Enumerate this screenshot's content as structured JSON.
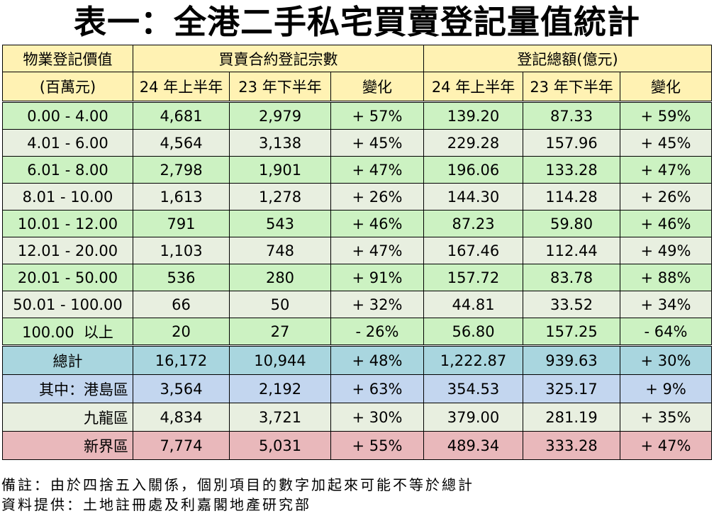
{
  "title": "表一：全港二手私宅買賣登記量值統計",
  "header": {
    "col_label_top": "物業登記價值",
    "col_label_bottom": "(百萬元)",
    "group_count": "買賣合約登記宗數",
    "group_value": "登記總額(億元)",
    "h1_2024": "24 年上半年",
    "h2_2023": "23 年下半年",
    "change": "變化"
  },
  "rows": [
    {
      "range": "0.00 - 4.00",
      "c24": "4,681",
      "c23": "2,979",
      "cchg": "+ 57%",
      "v24": "139.20",
      "v23": "87.33",
      "vchg": "+ 59%"
    },
    {
      "range": "4.01 - 6.00",
      "c24": "4,564",
      "c23": "3,138",
      "cchg": "+ 45%",
      "v24": "229.28",
      "v23": "157.96",
      "vchg": "+ 45%"
    },
    {
      "range": "6.01 - 8.00",
      "c24": "2,798",
      "c23": "1,901",
      "cchg": "+ 47%",
      "v24": "196.06",
      "v23": "133.28",
      "vchg": "+ 47%"
    },
    {
      "range": "8.01 - 10.00",
      "c24": "1,613",
      "c23": "1,278",
      "cchg": "+ 26%",
      "v24": "144.30",
      "v23": "114.28",
      "vchg": "+ 26%"
    },
    {
      "range": "10.01 - 12.00",
      "c24": "791",
      "c23": "543",
      "cchg": "+ 46%",
      "v24": "87.23",
      "v23": "59.80",
      "vchg": "+ 46%"
    },
    {
      "range": "12.01 - 20.00",
      "c24": "1,103",
      "c23": "748",
      "cchg": "+ 47%",
      "v24": "167.46",
      "v23": "112.44",
      "vchg": "+ 49%"
    },
    {
      "range": "20.01 - 50.00",
      "c24": "536",
      "c23": "280",
      "cchg": "+ 91%",
      "v24": "157.72",
      "v23": "83.78",
      "vchg": "+ 88%"
    },
    {
      "range": "50.01 - 100.00",
      "c24": "66",
      "c23": "50",
      "cchg": "+ 32%",
      "v24": "44.81",
      "v23": "33.52",
      "vchg": "+ 34%"
    },
    {
      "range": "100.00  以上",
      "c24": "20",
      "c23": "27",
      "cchg": "- 26%",
      "v24": "56.80",
      "v23": "157.25",
      "vchg": "- 64%"
    }
  ],
  "total": {
    "label": "總計",
    "c24": "16,172",
    "c23": "10,944",
    "cchg": "+ 48%",
    "v24": "1,222.87",
    "v23": "939.63",
    "vchg": "+ 30%"
  },
  "regions": [
    {
      "label": "其中：港島區",
      "c24": "3,564",
      "c23": "2,192",
      "cchg": "+ 63%",
      "v24": "354.53",
      "v23": "325.17",
      "vchg": "+ 9%"
    },
    {
      "label": "九龍區",
      "c24": "4,834",
      "c23": "3,721",
      "cchg": "+ 30%",
      "v24": "379.00",
      "v23": "281.19",
      "vchg": "+ 35%"
    },
    {
      "label": "新界區",
      "c24": "7,774",
      "c23": "5,031",
      "cchg": "+ 55%",
      "v24": "489.34",
      "v23": "333.28",
      "vchg": "+ 47%"
    }
  ],
  "notes": {
    "remark": "備註：由於四捨五入關係，個別項目的數字加起來可能不等於總計",
    "source": "資料提供：土地註冊處及利嘉閣地產研究部"
  }
}
